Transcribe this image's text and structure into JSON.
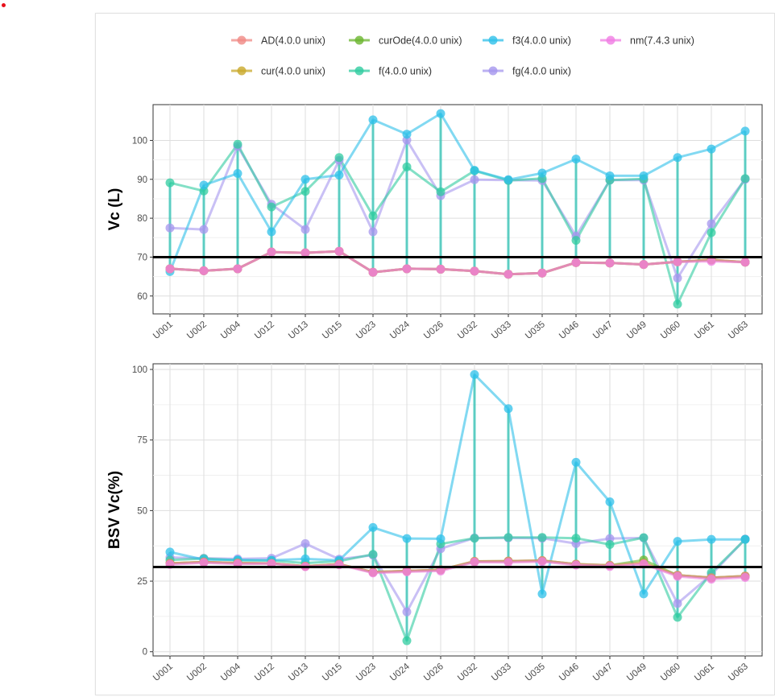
{
  "chart_data": [
    {
      "type": "line",
      "ylabel": "Vc (L)",
      "ylim": [
        55.4,
        109.2
      ],
      "yticks": [
        60,
        70,
        80,
        90,
        100
      ],
      "reference_line": 70,
      "grid": true,
      "categories": [
        "U001",
        "U002",
        "U004",
        "U012",
        "U013",
        "U015",
        "U023",
        "U024",
        "U026",
        "U032",
        "U033",
        "U035",
        "U046",
        "U047",
        "U049",
        "U060",
        "U061",
        "U063"
      ],
      "series": [
        {
          "name": "AD(4.0.0 unix)",
          "values": [
            67,
            66.5,
            67,
            71.3,
            71.1,
            71.5,
            66.1,
            67,
            66.9,
            66.4,
            65.6,
            65.9,
            68.6,
            68.5,
            68.1,
            68.8,
            69.3,
            68.7
          ]
        },
        {
          "name": "cur(4.0.0 unix)",
          "values": [
            67,
            66.5,
            67,
            71.3,
            71.1,
            71.5,
            66.1,
            67,
            66.9,
            66.4,
            65.6,
            65.9,
            68.6,
            68.5,
            68.1,
            68.8,
            69.3,
            68.7
          ]
        },
        {
          "name": "curOde(4.0.0 unix)",
          "values": [
            67,
            66.5,
            67,
            71.3,
            71.1,
            71.5,
            66.1,
            67,
            66.9,
            66.4,
            65.6,
            65.9,
            68.6,
            68.5,
            68.1,
            68.8,
            69.3,
            68.7
          ]
        },
        {
          "name": "f(4.0.0 unix)",
          "values": [
            89.1,
            87,
            99,
            82.9,
            86.9,
            95.6,
            80.6,
            93.2,
            86.8,
            92.2,
            89.7,
            90.2,
            74.3,
            89.8,
            90.1,
            57.9,
            76.3,
            90.2
          ]
        },
        {
          "name": "f3(4.0.0 unix)",
          "values": [
            66.3,
            88.5,
            91.5,
            76.5,
            90,
            91.1,
            105.3,
            101.6,
            106.9,
            92.3,
            89.9,
            91.6,
            95.2,
            90.9,
            90.9,
            95.6,
            97.8,
            102.4
          ]
        },
        {
          "name": "fg(4.0.0 unix)",
          "values": [
            77.5,
            77.1,
            98.5,
            83.6,
            77.1,
            94.9,
            76.5,
            100.1,
            85.8,
            89.9,
            89.8,
            89.7,
            75.4,
            89.8,
            89.8,
            64.6,
            78.6,
            90
          ]
        },
        {
          "name": "nm(7.4.3 unix)",
          "values": [
            67,
            66.5,
            67,
            71.3,
            71.1,
            71.5,
            66.1,
            67,
            66.9,
            66.4,
            65.6,
            65.9,
            68.6,
            68.5,
            68.1,
            68.8,
            68.9,
            68.7
          ]
        }
      ]
    },
    {
      "type": "line",
      "ylabel": "BSV Vc(%)",
      "ylim": [
        -1.5,
        102
      ],
      "yticks": [
        0,
        25,
        50,
        75,
        100
      ],
      "reference_line": 30,
      "grid": true,
      "categories": [
        "U001",
        "U002",
        "U004",
        "U012",
        "U013",
        "U015",
        "U023",
        "U024",
        "U026",
        "U032",
        "U033",
        "U035",
        "U046",
        "U047",
        "U049",
        "U060",
        "U061",
        "U063"
      ],
      "series": [
        {
          "name": "AD(4.0.0 unix)",
          "values": [
            31.3,
            31.8,
            31.4,
            31.3,
            30.3,
            31,
            28.2,
            28.6,
            29,
            32,
            32.1,
            32.3,
            31,
            30.6,
            31.3,
            27.1,
            26.2,
            26.8
          ]
        },
        {
          "name": "cur(4.0.0 unix)",
          "values": [
            31.3,
            31.8,
            31.4,
            31.3,
            30.3,
            31,
            28.2,
            28.6,
            29,
            32,
            32.1,
            32.3,
            31,
            30.6,
            31.5,
            27.1,
            26.2,
            26.8
          ]
        },
        {
          "name": "curOde(4.0.0 unix)",
          "values": [
            31.3,
            31.8,
            31.4,
            31.3,
            30.3,
            31,
            28.2,
            28.6,
            29,
            32,
            32.1,
            32.3,
            31,
            30.6,
            32.5,
            27.1,
            26.2,
            26.8
          ]
        },
        {
          "name": "f(4.0.0 unix)",
          "values": [
            32.5,
            33,
            32.4,
            32.3,
            31.4,
            32.1,
            34.5,
            3.9,
            38.2,
            40.2,
            40.5,
            40.5,
            40.2,
            38,
            40.4,
            12.2,
            28,
            39.8
          ]
        },
        {
          "name": "f3(4.0.0 unix)",
          "values": [
            35.3,
            32.6,
            32.5,
            32.4,
            32.9,
            32.4,
            44,
            40.1,
            40,
            98.2,
            86.1,
            20.5,
            67.1,
            53.1,
            20.5,
            39.1,
            39.8,
            39.8
          ]
        },
        {
          "name": "fg(4.0.0 unix)",
          "values": [
            33.4,
            33.1,
            32.9,
            33.1,
            38.3,
            32.8,
            34.2,
            14.1,
            36.5,
            40.3,
            40.3,
            40.2,
            38.3,
            40.1,
            40.3,
            17.1,
            27.3,
            39.9
          ]
        },
        {
          "name": "nm(7.4.3 unix)",
          "values": [
            30.9,
            31.5,
            31.1,
            31.2,
            30.1,
            30.8,
            27.9,
            28.3,
            28.6,
            31.7,
            31.6,
            31.9,
            30.7,
            30.2,
            31,
            26.7,
            25.7,
            26.3
          ]
        }
      ]
    }
  ],
  "legend": [
    {
      "name": "AD(4.0.0 unix)",
      "color": "#f08a85"
    },
    {
      "name": "curOde(4.0.0 unix)",
      "color": "#6ab52e"
    },
    {
      "name": "f3(4.0.0 unix)",
      "color": "#2ec0ea"
    },
    {
      "name": "nm(7.4.3 unix)",
      "color": "#f07de4"
    },
    {
      "name": "cur(4.0.0 unix)",
      "color": "#c9a92a"
    },
    {
      "name": "f(4.0.0 unix)",
      "color": "#30cca0"
    },
    {
      "name": "fg(4.0.0 unix)",
      "color": "#a596ee"
    }
  ],
  "line_colors": {
    "AD(4.0.0 unix)": "#f08a85",
    "cur(4.0.0 unix)": "#c9a92a",
    "curOde(4.0.0 unix)": "#6ab52e",
    "f(4.0.0 unix)": "#30cca0",
    "f3(4.0.0 unix)": "#2ec0ea",
    "fg(4.0.0 unix)": "#a596ee",
    "nm(7.4.3 unix)": "#f07de4"
  }
}
